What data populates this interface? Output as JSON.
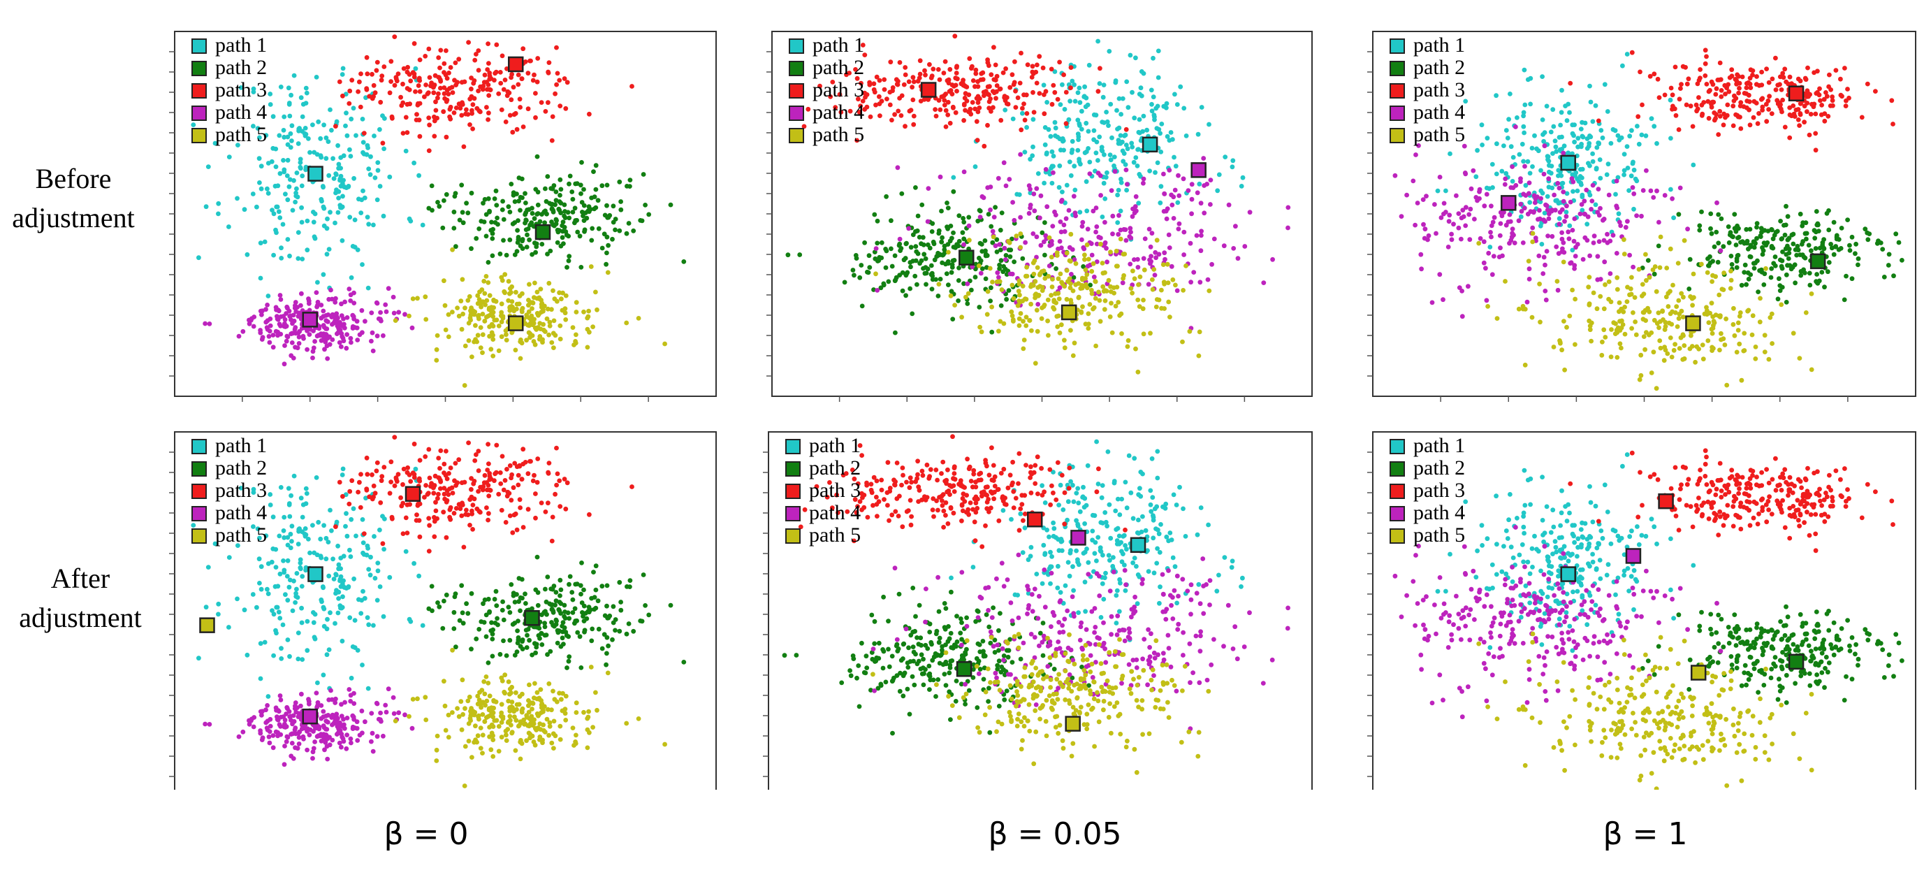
{
  "row_labels": [
    "Before adjustment",
    "After adjustment"
  ],
  "col_labels": [
    "β = 0",
    "β = 0.05",
    "β = 1"
  ],
  "colors": {
    "path 1": "#21c7c7",
    "path 2": "#127f12",
    "path 3": "#ef1d1d",
    "path 4": "#bd23bd",
    "path 5": "#c2bf16"
  },
  "chart_data": [
    {
      "type": "scatter",
      "row": "Before adjustment",
      "column": "β = 0",
      "legend": [
        "path 1",
        "path 2",
        "path 3",
        "path 4",
        "path 5"
      ],
      "axes": {
        "ticks_shown": true,
        "tick_labels": "none"
      },
      "clusters": [
        {
          "name": "path 1",
          "centroid": [
            0.26,
            0.62
          ],
          "spread": [
            0.08,
            0.14
          ],
          "marker": [
            0.26,
            0.61
          ]
        },
        {
          "name": "path 2",
          "centroid": [
            0.68,
            0.49
          ],
          "spread": [
            0.09,
            0.06
          ],
          "marker": [
            0.68,
            0.45
          ]
        },
        {
          "name": "path 3",
          "centroid": [
            0.52,
            0.84
          ],
          "spread": [
            0.1,
            0.06
          ],
          "marker": [
            0.63,
            0.91
          ]
        },
        {
          "name": "path 4",
          "centroid": [
            0.25,
            0.2
          ],
          "spread": [
            0.07,
            0.04
          ],
          "marker": [
            0.25,
            0.21
          ]
        },
        {
          "name": "path 5",
          "centroid": [
            0.63,
            0.22
          ],
          "spread": [
            0.07,
            0.05
          ],
          "marker": [
            0.63,
            0.2
          ]
        }
      ]
    },
    {
      "type": "scatter",
      "row": "Before adjustment",
      "column": "β = 0.05",
      "legend": [
        "path 1",
        "path 2",
        "path 3",
        "path 4",
        "path 5"
      ],
      "axes": {
        "ticks_shown": true,
        "tick_labels": "none"
      },
      "clusters": [
        {
          "name": "path 1",
          "centroid": [
            0.62,
            0.7
          ],
          "spread": [
            0.1,
            0.1
          ],
          "marker": [
            0.7,
            0.69
          ]
        },
        {
          "name": "path 2",
          "centroid": [
            0.32,
            0.38
          ],
          "spread": [
            0.09,
            0.06
          ],
          "marker": [
            0.36,
            0.38
          ]
        },
        {
          "name": "path 3",
          "centroid": [
            0.34,
            0.84
          ],
          "spread": [
            0.12,
            0.05
          ],
          "marker": [
            0.29,
            0.84
          ]
        },
        {
          "name": "path 4",
          "centroid": [
            0.6,
            0.45
          ],
          "spread": [
            0.16,
            0.1
          ],
          "marker": [
            0.79,
            0.62
          ]
        },
        {
          "name": "path 5",
          "centroid": [
            0.56,
            0.28
          ],
          "spread": [
            0.09,
            0.07
          ],
          "marker": [
            0.55,
            0.23
          ]
        }
      ]
    },
    {
      "type": "scatter",
      "row": "Before adjustment",
      "column": "β = 1",
      "legend": [
        "path 1",
        "path 2",
        "path 3",
        "path 4",
        "path 5"
      ],
      "axes": {
        "ticks_shown": true,
        "tick_labels": "none"
      },
      "clusters": [
        {
          "name": "path 1",
          "centroid": [
            0.36,
            0.66
          ],
          "spread": [
            0.08,
            0.1
          ],
          "marker": [
            0.36,
            0.64
          ]
        },
        {
          "name": "path 2",
          "centroid": [
            0.76,
            0.4
          ],
          "spread": [
            0.09,
            0.05
          ],
          "marker": [
            0.82,
            0.37
          ]
        },
        {
          "name": "path 3",
          "centroid": [
            0.71,
            0.82
          ],
          "spread": [
            0.1,
            0.05
          ],
          "marker": [
            0.78,
            0.83
          ]
        },
        {
          "name": "path 4",
          "centroid": [
            0.3,
            0.48
          ],
          "spread": [
            0.12,
            0.09
          ],
          "marker": [
            0.25,
            0.53
          ]
        },
        {
          "name": "path 5",
          "centroid": [
            0.55,
            0.22
          ],
          "spread": [
            0.12,
            0.08
          ],
          "marker": [
            0.59,
            0.2
          ]
        }
      ]
    },
    {
      "type": "scatter",
      "row": "After adjustment",
      "column": "β = 0",
      "legend": [
        "path 1",
        "path 2",
        "path 3",
        "path 4",
        "path 5"
      ],
      "axes": {
        "ticks_shown": true,
        "tick_labels": "none"
      },
      "clusters": [
        {
          "name": "path 1",
          "centroid": [
            0.26,
            0.62
          ],
          "spread": [
            0.08,
            0.14
          ],
          "marker": [
            0.26,
            0.61
          ]
        },
        {
          "name": "path 2",
          "centroid": [
            0.68,
            0.49
          ],
          "spread": [
            0.09,
            0.06
          ],
          "marker": [
            0.66,
            0.49
          ]
        },
        {
          "name": "path 3",
          "centroid": [
            0.52,
            0.84
          ],
          "spread": [
            0.1,
            0.06
          ],
          "marker": [
            0.44,
            0.83
          ]
        },
        {
          "name": "path 4",
          "centroid": [
            0.25,
            0.2
          ],
          "spread": [
            0.07,
            0.04
          ],
          "marker": [
            0.25,
            0.22
          ]
        },
        {
          "name": "path 5",
          "centroid": [
            0.63,
            0.22
          ],
          "spread": [
            0.07,
            0.05
          ],
          "marker": [
            0.06,
            0.47
          ]
        }
      ]
    },
    {
      "type": "scatter",
      "row": "After adjustment",
      "column": "β = 0.05",
      "legend": [
        "path 1",
        "path 2",
        "path 3",
        "path 4",
        "path 5"
      ],
      "axes": {
        "ticks_shown": true,
        "tick_labels": "none"
      },
      "clusters": [
        {
          "name": "path 1",
          "centroid": [
            0.62,
            0.7
          ],
          "spread": [
            0.1,
            0.1
          ],
          "marker": [
            0.68,
            0.69
          ]
        },
        {
          "name": "path 2",
          "centroid": [
            0.32,
            0.38
          ],
          "spread": [
            0.09,
            0.06
          ],
          "marker": [
            0.36,
            0.35
          ]
        },
        {
          "name": "path 3",
          "centroid": [
            0.34,
            0.84
          ],
          "spread": [
            0.12,
            0.05
          ],
          "marker": [
            0.49,
            0.76
          ]
        },
        {
          "name": "path 4",
          "centroid": [
            0.6,
            0.45
          ],
          "spread": [
            0.16,
            0.1
          ],
          "marker": [
            0.57,
            0.71
          ]
        },
        {
          "name": "path 5",
          "centroid": [
            0.56,
            0.28
          ],
          "spread": [
            0.09,
            0.07
          ],
          "marker": [
            0.56,
            0.2
          ]
        }
      ]
    },
    {
      "type": "scatter",
      "row": "After adjustment",
      "column": "β = 1",
      "legend": [
        "path 1",
        "path 2",
        "path 3",
        "path 4",
        "path 5"
      ],
      "axes": {
        "ticks_shown": true,
        "tick_labels": "none"
      },
      "clusters": [
        {
          "name": "path 1",
          "centroid": [
            0.36,
            0.66
          ],
          "spread": [
            0.08,
            0.1
          ],
          "marker": [
            0.36,
            0.61
          ]
        },
        {
          "name": "path 2",
          "centroid": [
            0.76,
            0.4
          ],
          "spread": [
            0.09,
            0.05
          ],
          "marker": [
            0.78,
            0.37
          ]
        },
        {
          "name": "path 3",
          "centroid": [
            0.71,
            0.82
          ],
          "spread": [
            0.1,
            0.05
          ],
          "marker": [
            0.54,
            0.81
          ]
        },
        {
          "name": "path 4",
          "centroid": [
            0.3,
            0.48
          ],
          "spread": [
            0.12,
            0.09
          ],
          "marker": [
            0.48,
            0.66
          ]
        },
        {
          "name": "path 5",
          "centroid": [
            0.55,
            0.22
          ],
          "spread": [
            0.12,
            0.08
          ],
          "marker": [
            0.6,
            0.34
          ]
        }
      ]
    }
  ]
}
